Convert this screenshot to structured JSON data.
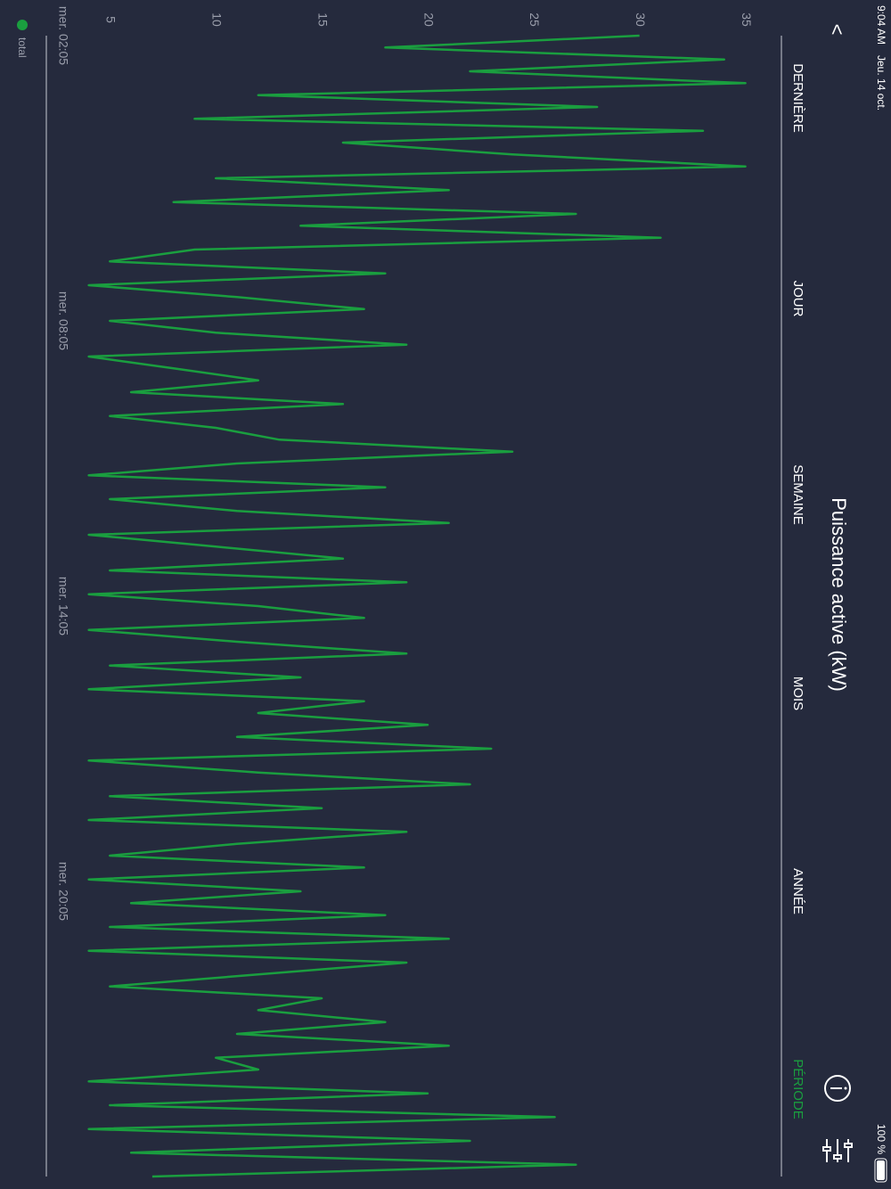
{
  "status": {
    "time": "9:04 AM",
    "date": "Jeu. 14 oct.",
    "battery": "100 %"
  },
  "nav": {
    "back": "<",
    "tabs": [
      "DERNIÈRE",
      "JOUR",
      "SEMAINE",
      "MOIS",
      "ANNÉE",
      "PÉRIODE"
    ],
    "active_tab": 5
  },
  "chart_data": {
    "type": "line",
    "title": "Puissance active (kW)",
    "x": [
      2.08,
      2.33,
      2.58,
      2.83,
      3.08,
      3.33,
      3.58,
      3.83,
      4.08,
      4.33,
      4.58,
      4.83,
      5.08,
      5.33,
      5.58,
      5.83,
      6.08,
      6.33,
      6.58,
      6.83,
      7.08,
      7.33,
      7.58,
      7.83,
      8.08,
      8.33,
      8.58,
      8.83,
      9.08,
      9.33,
      9.58,
      9.83,
      10.08,
      10.33,
      10.58,
      10.83,
      11.08,
      11.33,
      11.58,
      11.83,
      12.08,
      12.33,
      12.58,
      12.83,
      13.08,
      13.33,
      13.58,
      13.83,
      14.08,
      14.33,
      14.58,
      14.83,
      15.08,
      15.33,
      15.58,
      15.83,
      16.08,
      16.33,
      16.58,
      16.83,
      17.08,
      17.33,
      17.58,
      17.83,
      18.08,
      18.33,
      18.58,
      18.83,
      19.08,
      19.33,
      19.58,
      19.83,
      20.08,
      20.33,
      20.58,
      20.83,
      21.08,
      21.33,
      21.58,
      21.83,
      22.08,
      22.33,
      22.58,
      22.83,
      23.08,
      23.33,
      23.58,
      23.83,
      24.08,
      24.33,
      24.58,
      24.83,
      25.08,
      25.33,
      25.58,
      25.83,
      26.08
    ],
    "series": [
      {
        "name": "total",
        "color": "#1a9e3f",
        "values": [
          30,
          18,
          34,
          22,
          35,
          12,
          28,
          9,
          33,
          16,
          24,
          35,
          10,
          21,
          8,
          27,
          14,
          31,
          9,
          5,
          18,
          4,
          11,
          17,
          5,
          10,
          19,
          4,
          8,
          12,
          6,
          16,
          5,
          10,
          13,
          24,
          11,
          4,
          18,
          5,
          11,
          21,
          4,
          10,
          16,
          5,
          19,
          4,
          12,
          17,
          4,
          11,
          19,
          5,
          14,
          4,
          17,
          12,
          20,
          11,
          23,
          4,
          12,
          22,
          5,
          15,
          4,
          19,
          11,
          5,
          17,
          4,
          14,
          6,
          18,
          5,
          21,
          4,
          19,
          12,
          5,
          15,
          12,
          18,
          11,
          21,
          10,
          12,
          4,
          20,
          5,
          26,
          4,
          22,
          6,
          27,
          7
        ]
      }
    ],
    "xlim": [
      2.08,
      26.08
    ],
    "xticks": [
      {
        "value": 2.08,
        "label": "mer. 02:05"
      },
      {
        "value": 8.08,
        "label": "mer. 08:05"
      },
      {
        "value": 14.08,
        "label": "mer. 14:05"
      },
      {
        "value": 20.08,
        "label": "mer. 20:05"
      }
    ],
    "ylim": [
      2,
      36.7
    ],
    "yticks": [
      5,
      10,
      15,
      20,
      25,
      30,
      35
    ]
  }
}
